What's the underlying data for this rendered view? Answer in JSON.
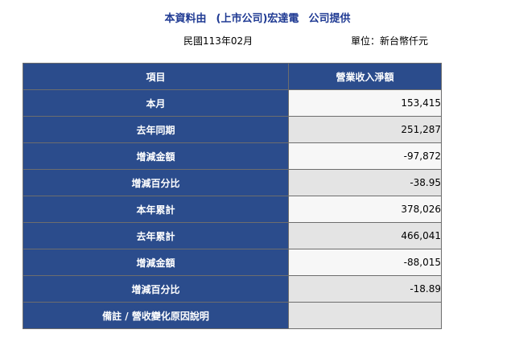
{
  "header": {
    "title_prefix": "本資料由",
    "company": "(上市公司)宏達電",
    "title_suffix": "公司提供",
    "date": "民國113年02月",
    "unit": "單位：新台幣仟元"
  },
  "table": {
    "headers": [
      "項目",
      "營業收入淨額"
    ],
    "rows": [
      {
        "label": "本月",
        "value": "153,415"
      },
      {
        "label": "去年同期",
        "value": "251,287"
      },
      {
        "label": "增減金額",
        "value": "-97,872"
      },
      {
        "label": "增減百分比",
        "value": "-38.95"
      },
      {
        "label": "本年累計",
        "value": "378,026"
      },
      {
        "label": "去年累計",
        "value": "466,041"
      },
      {
        "label": "增減金額",
        "value": "-88,015"
      },
      {
        "label": "增減百分比",
        "value": "-18.89"
      },
      {
        "label": "備註 / 營收變化原因說明",
        "value": ""
      }
    ]
  },
  "colors": {
    "header_blue": "#2b4c8c",
    "title_blue": "#1f3a93"
  }
}
